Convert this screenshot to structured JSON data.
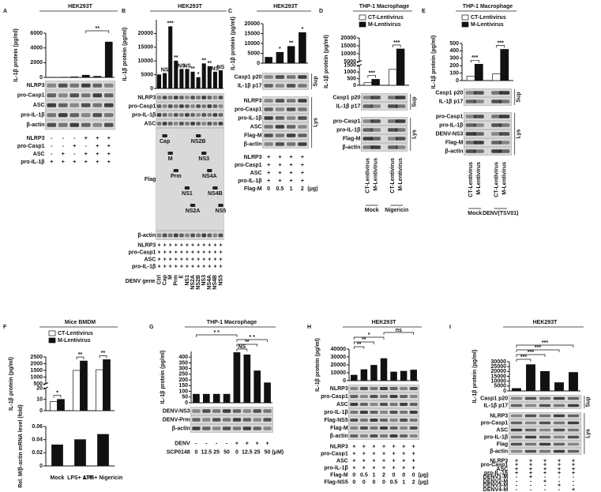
{
  "panels": [
    {
      "letter": "A",
      "title": "HEK293T",
      "charts": [
        {
          "type": "bar",
          "ylabel": "IL-1β protein (pg/ml)",
          "ylim": [
            0,
            6000
          ],
          "yticks": [
            0,
            2000,
            4000,
            6000
          ],
          "color": "#111111",
          "values": [
            20,
            30,
            80,
            300,
            150,
            4800
          ],
          "brackets": [
            {
              "text": "**",
              "from": 3,
              "to": 5
            }
          ]
        }
      ],
      "blots": [
        {
          "labels": [
            "NLRP3",
            "pro-Casp1",
            "ASC",
            "pro-IL-1β",
            "β-actin"
          ]
        }
      ],
      "conditions": [
        {
          "label": "NLRP3",
          "values": [
            "-",
            "-",
            "-",
            "+",
            "+",
            "+"
          ]
        },
        {
          "label": "pro-Casp1",
          "values": [
            "-",
            "-",
            "+",
            "-",
            "+",
            "+"
          ]
        },
        {
          "label": "ASC",
          "values": [
            "-",
            "+",
            "-",
            "+",
            "+",
            "+"
          ]
        },
        {
          "label": "pro-IL-1β",
          "values": [
            "+",
            "+",
            "+",
            "+",
            "+",
            "+"
          ]
        }
      ]
    },
    {
      "letter": "B",
      "title": "HEK293T",
      "charts": [
        {
          "type": "bar",
          "ylabel": "IL-1β protein (pg/ml)",
          "ylim": [
            0,
            25000
          ],
          "yticks": [
            0,
            5000,
            10000,
            15000,
            20000
          ],
          "color": "#111111",
          "categories": [
            "Ctrl",
            "Cap",
            "M",
            "Prm",
            "E",
            "NS1",
            "NS2A",
            "NS2B",
            "NS3",
            "NS4A",
            "NS4B",
            "NS5"
          ],
          "xlabel": "DENV gene",
          "values": [
            5000,
            5500,
            22500,
            10000,
            7000,
            7000,
            6000,
            4000,
            9000,
            8000,
            6000,
            6500
          ],
          "significance": [
            null,
            "NS",
            "***",
            "**",
            "NS",
            "NS",
            "**",
            "*",
            "**",
            "**",
            "NS",
            "NS"
          ]
        }
      ],
      "blots": [
        {
          "labels": [
            "NLRP3",
            "pro-Casp1",
            "pro-IL-1β",
            "ASC",
            "Flag",
            "β-actin"
          ]
        }
      ],
      "flag_bands": [
        "Cap",
        "M",
        "Prm",
        "NS1",
        "NS2A",
        "NS2B",
        "NS3",
        "NS4A",
        "NS4B",
        "NS5"
      ],
      "conditions": [
        {
          "label": "NLRP3",
          "values": [
            "+",
            "+",
            "+",
            "+",
            "+",
            "+",
            "+",
            "+",
            "+",
            "+",
            "+",
            "+"
          ]
        },
        {
          "label": "pro-Casp1",
          "values": [
            "+",
            "+",
            "+",
            "+",
            "+",
            "+",
            "+",
            "+",
            "+",
            "+",
            "+",
            "+"
          ]
        },
        {
          "label": "ASC",
          "values": [
            "+",
            "+",
            "+",
            "+",
            "+",
            "+",
            "+",
            "+",
            "+",
            "+",
            "+",
            "+"
          ]
        },
        {
          "label": "pro-IL-1β",
          "values": [
            "+",
            "+",
            "+",
            "+",
            "+",
            "+",
            "+",
            "+",
            "+",
            "+",
            "+",
            "+"
          ]
        }
      ]
    },
    {
      "letter": "C",
      "title": "HEK293T",
      "charts": [
        {
          "type": "bar",
          "ylabel": "IL-1β protein (pg/ml)",
          "ylim": [
            0,
            20000
          ],
          "yticks": [
            0,
            5000,
            10000,
            15000,
            20000
          ],
          "color": "#111111",
          "values": [
            3000,
            5500,
            8500,
            15500
          ],
          "significance": [
            null,
            "*",
            "**",
            "*"
          ]
        }
      ],
      "blots": [
        {
          "group": "Sup",
          "labels": [
            "Casp1 p20",
            "IL-1β p17"
          ]
        },
        {
          "group": "Lys",
          "labels": [
            "NLRP3",
            "pro-Casp1",
            "pro-IL-1β",
            "ASC",
            "Flag-M",
            "β-actin"
          ]
        }
      ],
      "conditions": [
        {
          "label": "NLRP3",
          "values": [
            "+",
            "+",
            "+",
            "+"
          ]
        },
        {
          "label": "pro-Casp1",
          "values": [
            "+",
            "+",
            "+",
            "+"
          ]
        },
        {
          "label": "ASC",
          "values": [
            "+",
            "+",
            "+",
            "+"
          ]
        },
        {
          "label": "pro-IL-1β",
          "values": [
            "+",
            "+",
            "+",
            "+"
          ]
        },
        {
          "label": "Flag-M",
          "values": [
            "0",
            "0.5",
            "1",
            "2"
          ],
          "unit": "(μg)"
        }
      ]
    },
    {
      "letter": "D",
      "title": "THP-1 Macrophage",
      "groups": [
        "Mock",
        "Nigericin"
      ],
      "charts": [
        {
          "type": "bar",
          "ylabel": "IL-1β protein (pg/ml)",
          "ylim": [
            0,
            20000
          ],
          "ybreak": [
            1500,
            5000
          ],
          "yticks": [
            0,
            500,
            1000,
            1500,
            5000,
            10000,
            15000,
            20000
          ],
          "series": [
            {
              "name": "CT-Lentivirus",
              "color": "#ffffff",
              "values": [
                200,
                1200
              ]
            },
            {
              "name": "M-Lentivirus",
              "color": "#111111",
              "values": [
                450,
                13000
              ]
            }
          ],
          "brackets": [
            {
              "text": "***",
              "group": 0
            },
            {
              "text": "***",
              "group": 1
            }
          ]
        }
      ],
      "blots": [
        {
          "group": "Sup",
          "labels": [
            "Casp1 p20",
            "IL-1β p17"
          ]
        },
        {
          "group": "Lys",
          "labels": [
            "pro-Casp1",
            "pro-IL-1β",
            "Flag-M",
            "β-actin"
          ]
        }
      ],
      "lanes": [
        "CT-Lentivirus",
        "M-Lentivirus",
        "CT-Lentivirus",
        "M-Lentivirus"
      ]
    },
    {
      "letter": "E",
      "title": "THP-1 Macrophage",
      "groups": [
        "Mock",
        "DENV(TSV01)"
      ],
      "charts": [
        {
          "type": "bar",
          "ylabel": "IL-1β protein (pg/ml)",
          "ylim": [
            0,
            500
          ],
          "yticks": [
            0,
            100,
            200,
            300,
            400,
            500
          ],
          "series": [
            {
              "name": "CT-Lentivirus",
              "color": "#ffffff",
              "values": [
                60,
                90
              ]
            },
            {
              "name": "M-Lentivirus",
              "color": "#111111",
              "values": [
                220,
                420
              ]
            }
          ],
          "brackets": [
            {
              "text": "***",
              "group": 0
            },
            {
              "text": "***",
              "group": 1
            }
          ]
        }
      ],
      "blots": [
        {
          "group": "Sup",
          "labels": [
            "Casp1 p20",
            "IL-1β p17"
          ]
        },
        {
          "group": "Lys",
          "labels": [
            "pro-Casp1",
            "pro-IL-1β",
            "DENV-NS3",
            "Flag-M",
            "β-actin"
          ]
        }
      ],
      "lanes": [
        "CT-Lentivirus",
        "M-Lentivirus",
        "CT-Lentivirus",
        "M-Lentivirus"
      ]
    },
    {
      "letter": "F",
      "title": "Mice BMDM",
      "groups": [
        "Mock",
        "LPS+ ATP",
        "LPS+ Nigericin"
      ],
      "charts": [
        {
          "type": "bar",
          "ylabel": "IL-1β protein (pg/ml)",
          "ylim": [
            0,
            2500
          ],
          "ybreak": [
            20,
            500
          ],
          "yticks": [
            0,
            10,
            20,
            500,
            1000,
            1500,
            2000,
            2500
          ],
          "series": [
            {
              "name": "CT-Lentivirus",
              "color": "#ffffff",
              "values": [
                8,
                1500,
                1550
              ]
            },
            {
              "name": "M-Lentivirus",
              "color": "#111111",
              "values": [
                10,
                2200,
                2300
              ]
            }
          ],
          "brackets": [
            {
              "text": "*",
              "group": 0
            },
            {
              "text": "**",
              "group": 1
            },
            {
              "text": "**",
              "group": 2
            }
          ]
        },
        {
          "type": "bar",
          "ylabel": "Rel. M/β-actin mRNA level (fold)",
          "ylim": [
            0,
            0.06
          ],
          "yticks": [
            0,
            0.02,
            0.04,
            0.06
          ],
          "color": "#111111",
          "values": [
            0.032,
            0.04,
            0.048
          ]
        }
      ]
    },
    {
      "letter": "G",
      "title": "THP-1 Macrophage",
      "charts": [
        {
          "type": "bar",
          "ylabel": "IL-1β protein (pg/ml)",
          "ylim": [
            0,
            450
          ],
          "yticks": [
            0,
            50,
            100,
            150,
            200,
            250,
            300,
            350,
            400
          ],
          "color": "#111111",
          "values": [
            75,
            75,
            75,
            75,
            440,
            420,
            280,
            175
          ],
          "brackets": [
            {
              "text": "NS",
              "from": 4,
              "to": 5
            },
            {
              "text": "**",
              "from": 4,
              "to": 6
            },
            {
              "text": "* *",
              "from": 4,
              "to": 7
            },
            {
              "text": "* *",
              "from": 0,
              "to": 4
            }
          ]
        }
      ],
      "blots": [
        {
          "labels": [
            "DENV-NS3",
            "DENV-Prm",
            "β-actin"
          ]
        }
      ],
      "conditions": [
        {
          "label": "DENV",
          "values": [
            "-",
            "-",
            "-",
            "-",
            "+",
            "+",
            "+",
            "+"
          ]
        },
        {
          "label": "SCP0148",
          "values": [
            "0",
            "12.5",
            "25",
            "50",
            "0",
            "12.5",
            "25",
            "50"
          ],
          "unit": "(μM)"
        }
      ]
    },
    {
      "letter": "H",
      "title": "HEK293T",
      "charts": [
        {
          "type": "bar",
          "ylabel": "IL-1β protein (pg/ml)",
          "ylim": [
            0,
            40000
          ],
          "yticks": [
            0,
            10000,
            20000,
            30000,
            40000
          ],
          "color": "#111111",
          "values": [
            7000,
            14000,
            19500,
            28000,
            11000,
            12000,
            13500
          ],
          "brackets": [
            {
              "text": "**",
              "from": 0,
              "to": 1
            },
            {
              "text": "**",
              "from": 0,
              "to": 2
            },
            {
              "text": "*",
              "from": 0,
              "to": 3
            },
            {
              "text": "ns",
              "from": 3,
              "to": 6
            }
          ]
        }
      ],
      "blots": [
        {
          "labels": [
            "NLRP3",
            "pro-Casp1",
            "ASC",
            "pro-IL-1β",
            "Flag-NS5",
            "Flag-M",
            "β-actin"
          ]
        }
      ],
      "conditions": [
        {
          "label": "NLRP3",
          "values": [
            "+",
            "+",
            "+",
            "+",
            "+",
            "+",
            "+"
          ]
        },
        {
          "label": "pro-Casp1",
          "values": [
            "+",
            "+",
            "+",
            "+",
            "+",
            "+",
            "+"
          ]
        },
        {
          "label": "ASC",
          "values": [
            "+",
            "+",
            "+",
            "+",
            "+",
            "+",
            "+"
          ]
        },
        {
          "label": "pro-IL-1β",
          "values": [
            "+",
            "+",
            "+",
            "+",
            "+",
            "+",
            "+"
          ]
        },
        {
          "label": "Flag-M",
          "values": [
            "0",
            "0.5",
            "1",
            "2",
            "0",
            "0",
            "0"
          ],
          "unit": "(μg)"
        },
        {
          "label": "Flag-NS5",
          "values": [
            "0",
            "0",
            "0",
            "0",
            "0.5",
            "1",
            "2"
          ],
          "unit": "(μg)"
        }
      ]
    },
    {
      "letter": "I",
      "title": "HEK293T",
      "charts": [
        {
          "type": "bar",
          "ylabel": "IL-1β protein (pg/ml)",
          "ylim": [
            0,
            30000
          ],
          "yticks": [
            0,
            5000,
            10000,
            15000,
            20000,
            25000,
            30000
          ],
          "color": "#111111",
          "values": [
            2500,
            27000,
            20000,
            8500,
            19000
          ],
          "brackets": [
            {
              "text": "***",
              "from": 0,
              "to": 1
            },
            {
              "text": "***",
              "from": 0,
              "to": 2
            },
            {
              "text": "***",
              "from": 0,
              "to": 3
            },
            {
              "text": "***",
              "from": 0,
              "to": 4
            }
          ]
        }
      ],
      "blots": [
        {
          "group": "Sup",
          "labels": [
            "Casp1 p20",
            "IL-1β p17"
          ]
        },
        {
          "group": "Lys",
          "labels": [
            "NLRP3",
            "pro-Casp1",
            "ASC",
            "pro-IL-1β",
            "Flag",
            "β-actin"
          ]
        }
      ],
      "conditions": [
        {
          "label": "NLRP3",
          "values": [
            "+",
            "+",
            "+",
            "+",
            "+"
          ]
        },
        {
          "label": "pro-Casp1",
          "values": [
            "+",
            "+",
            "+",
            "+",
            "+"
          ]
        },
        {
          "label": "ASC",
          "values": [
            "+",
            "+",
            "+",
            "+",
            "+"
          ]
        },
        {
          "label": "pro-IL-1β",
          "values": [
            "+",
            "+",
            "+",
            "+",
            "+"
          ]
        },
        {
          "label": "DENV1-M",
          "values": [
            "-",
            "+",
            "-",
            "-",
            "-"
          ]
        },
        {
          "label": "DENV2-M",
          "values": [
            "-",
            "-",
            "+",
            "-",
            "-"
          ]
        },
        {
          "label": "DENV3-M",
          "values": [
            "-",
            "-",
            "-",
            "+",
            "-"
          ]
        },
        {
          "label": "DENV4-M",
          "values": [
            "-",
            "-",
            "-",
            "-",
            "+"
          ]
        }
      ]
    }
  ]
}
